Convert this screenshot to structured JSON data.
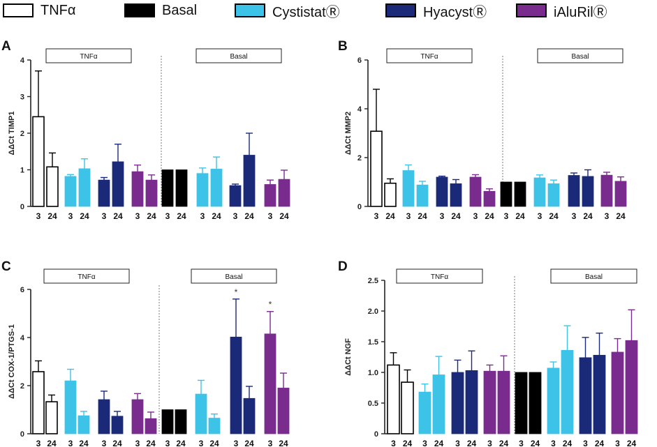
{
  "legend": [
    {
      "label": "TNFα",
      "color": "#ffffff"
    },
    {
      "label": "Basal",
      "color": "#000000"
    },
    {
      "label": "CystistatⓇ",
      "color": "#3ec3e8"
    },
    {
      "label": "HyacystⓇ",
      "color": "#1a2a78"
    },
    {
      "label": "iAluRilⓇ",
      "color": "#7a2c8e"
    }
  ],
  "chart_data": [
    {
      "panel": "A",
      "type": "bar",
      "ylabel": "ΔΔCt TIMP1",
      "ylim": [
        0,
        4
      ],
      "yticks": [
        0,
        1,
        2,
        3,
        4
      ],
      "ytick_labels": [
        "0",
        "1",
        "2",
        "3",
        "4"
      ],
      "groups": [
        "TNFα",
        "Basal"
      ],
      "conditions": [
        "TNFα",
        "Cystistat",
        "Hyacyst",
        "iAluRil",
        "Basal",
        "Cystistat",
        "Hyacyst",
        "iAluRil"
      ],
      "categories": [
        "3",
        "24"
      ],
      "values": [
        [
          2.45,
          1.08
        ],
        [
          0.82,
          1.03
        ],
        [
          0.72,
          1.22
        ],
        [
          0.95,
          0.72
        ],
        [
          1.0,
          1.0
        ],
        [
          0.9,
          1.02
        ],
        [
          0.57,
          1.4
        ],
        [
          0.6,
          0.74
        ]
      ],
      "errors": [
        [
          1.25,
          0.38
        ],
        [
          0.05,
          0.27
        ],
        [
          0.07,
          0.48
        ],
        [
          0.18,
          0.14
        ],
        [
          0,
          0
        ],
        [
          0.15,
          0.33
        ],
        [
          0.04,
          0.6
        ],
        [
          0.12,
          0.25
        ]
      ],
      "annotations": []
    },
    {
      "panel": "B",
      "type": "bar",
      "ylabel": "ΔΔCt MMP2",
      "ylim": [
        0,
        6
      ],
      "yticks": [
        0,
        2,
        4,
        6
      ],
      "ytick_labels": [
        "0",
        "2",
        "4",
        "6"
      ],
      "groups": [
        "TNFα",
        "Basal"
      ],
      "conditions": [
        "TNFα",
        "Cystistat",
        "Hyacyst",
        "iAluRil",
        "Basal",
        "Cystistat",
        "Hyacyst",
        "iAluRil"
      ],
      "categories": [
        "3",
        "24"
      ],
      "values": [
        [
          3.08,
          0.95
        ],
        [
          1.47,
          0.88
        ],
        [
          1.2,
          0.93
        ],
        [
          1.2,
          0.62
        ],
        [
          1.0,
          1.0
        ],
        [
          1.17,
          0.93
        ],
        [
          1.27,
          1.23
        ],
        [
          1.28,
          1.03
        ]
      ],
      "errors": [
        [
          1.72,
          0.18
        ],
        [
          0.23,
          0.15
        ],
        [
          0.04,
          0.17
        ],
        [
          0.1,
          0.1
        ],
        [
          0,
          0
        ],
        [
          0.12,
          0.15
        ],
        [
          0.1,
          0.27
        ],
        [
          0.12,
          0.18
        ]
      ],
      "annotations": []
    },
    {
      "panel": "C",
      "type": "bar",
      "ylabel": "ΔΔCt COX-1/PTGS-1",
      "ylim": [
        0,
        6
      ],
      "yticks": [
        0,
        2,
        4,
        6
      ],
      "ytick_labels": [
        "0",
        "2",
        "4",
        "6"
      ],
      "groups": [
        "TNFα",
        "Basal"
      ],
      "conditions": [
        "TNFα",
        "Cystistat",
        "Hyacyst",
        "iAluRil",
        "Basal",
        "Cystistat",
        "Hyacyst",
        "iAluRil"
      ],
      "categories": [
        "3",
        "24"
      ],
      "values": [
        [
          2.58,
          1.33
        ],
        [
          2.2,
          0.75
        ],
        [
          1.42,
          0.73
        ],
        [
          1.42,
          0.63
        ],
        [
          1.0,
          1.0
        ],
        [
          1.65,
          0.65
        ],
        [
          4.02,
          1.47
        ],
        [
          4.15,
          1.9
        ]
      ],
      "errors": [
        [
          0.45,
          0.28
        ],
        [
          0.48,
          0.18
        ],
        [
          0.35,
          0.2
        ],
        [
          0.25,
          0.27
        ],
        [
          0,
          0
        ],
        [
          0.57,
          0.17
        ],
        [
          1.58,
          0.5
        ],
        [
          0.93,
          0.62
        ]
      ],
      "annotations": [
        {
          "condition": 6,
          "time": "3",
          "text": "*"
        },
        {
          "condition": 7,
          "time": "3",
          "text": "*"
        }
      ]
    },
    {
      "panel": "D",
      "type": "bar",
      "ylabel": "ΔΔCt NGF",
      "ylim": [
        0,
        2.5
      ],
      "yticks": [
        0,
        0.5,
        1,
        1.5,
        2,
        2.5
      ],
      "ytick_labels": [
        "0",
        "0.5",
        "1.0",
        "1.5",
        "2.0",
        "2.5"
      ],
      "groups": [
        "TNFα",
        "Basal"
      ],
      "conditions": [
        "TNFα",
        "Cystistat",
        "Hyacyst",
        "iAluRil",
        "Basal",
        "Cystistat",
        "Hyacyst",
        "iAluRil"
      ],
      "categories": [
        "3",
        "24"
      ],
      "values": [
        [
          1.12,
          0.84
        ],
        [
          0.68,
          0.96
        ],
        [
          1.0,
          1.03
        ],
        [
          1.02,
          1.02
        ],
        [
          1.0,
          1.0
        ],
        [
          1.07,
          1.36
        ],
        [
          1.24,
          1.28
        ],
        [
          1.33,
          1.52
        ]
      ],
      "errors": [
        [
          0.2,
          0.2
        ],
        [
          0.13,
          0.3
        ],
        [
          0.2,
          0.32
        ],
        [
          0.1,
          0.25
        ],
        [
          0,
          0
        ],
        [
          0.1,
          0.4
        ],
        [
          0.33,
          0.36
        ],
        [
          0.22,
          0.5
        ]
      ],
      "annotations": []
    }
  ]
}
